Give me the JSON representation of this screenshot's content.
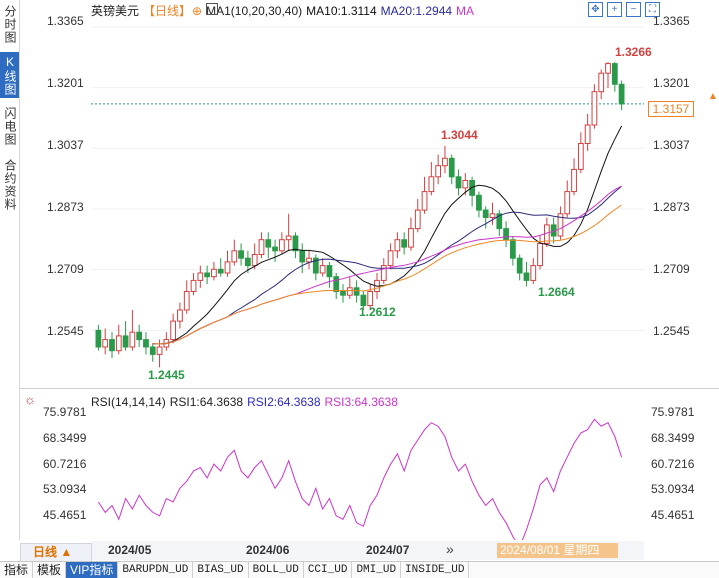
{
  "sidebar": {
    "tabs": [
      {
        "label": "分时图"
      },
      {
        "label": "K线图"
      },
      {
        "label": "闪电图"
      },
      {
        "label": "合约资料"
      }
    ]
  },
  "header": {
    "symbol": "英镑美元",
    "period": "【日线】",
    "gear": "⊕",
    "ma_params": "MA1(10,20,30,40)",
    "ma10": "MA10:1.3114",
    "ma20": "MA20:1.2944",
    "ma_last": "MA"
  },
  "toolbar": {
    "icons": [
      "move-icon",
      "zoom-in-icon",
      "zoom-out-icon",
      "fullscreen-icon"
    ]
  },
  "price_axis": {
    "labels": [
      "1.3365",
      "1.3201",
      "1.3037",
      "1.2873",
      "1.2709",
      "1.2545"
    ]
  },
  "left_axis": {
    "labels": [
      "1.3365",
      "1.3201",
      "1.3037",
      "1.2873",
      "1.2709",
      "1.2545"
    ]
  },
  "current_price": "1.3157",
  "annotations": {
    "high1": "1.3266",
    "high2": "1.3044",
    "low1": "1.2445",
    "low2": "1.2612",
    "low3": "1.2664"
  },
  "rsi": {
    "gear": "☼",
    "label": "RSI(14,14,14)",
    "rsi1": "RSI1:64.3638",
    "rsi2": "RSI2:64.3638",
    "rsi3": "RSI3:64.3638",
    "axis": [
      "75.9781",
      "68.3499",
      "60.7216",
      "53.0934",
      "45.4651"
    ],
    "left_axis": [
      "75.9781",
      "68.3499",
      "60.7216",
      "53.0934",
      "45.4651"
    ]
  },
  "period_button": "日线 ▲",
  "dates": [
    "2024/05",
    "2024/06",
    "2024/07"
  ],
  "cursor_date": "2024/08/01 星期四",
  "scroll_glyph": "»",
  "bottom_tabs": [
    "指标",
    "模板",
    "VIP指标",
    "BARUPDN_UD",
    "BIAS_UD",
    "BOLL_UD",
    "CCI_UD",
    "DMI_UD",
    "INSIDE_UD"
  ],
  "colors": {
    "up": "#d24040",
    "down": "#2a9a4a",
    "ma10": "#111111",
    "ma20": "#2a2a7a",
    "ma30": "#cc33cc",
    "ma40": "#ee8822",
    "rsi": "#cc33cc",
    "accent": "#2d6cc0",
    "current": "#f08020"
  },
  "chart_data": {
    "type": "candlestick",
    "ylim": [
      1.24,
      1.34
    ],
    "y_ticks": [
      1.3365,
      1.3201,
      1.3037,
      1.2873,
      1.2709,
      1.2545
    ],
    "candles": [
      [
        1.2545,
        1.25,
        1.256,
        1.249
      ],
      [
        1.25,
        1.252,
        1.255,
        1.248
      ],
      [
        1.252,
        1.249,
        1.254,
        1.247
      ],
      [
        1.249,
        1.253,
        1.256,
        1.248
      ],
      [
        1.253,
        1.25,
        1.257,
        1.249
      ],
      [
        1.25,
        1.254,
        1.26,
        1.249
      ],
      [
        1.254,
        1.252,
        1.256,
        1.25
      ],
      [
        1.252,
        1.25,
        1.254,
        1.248
      ],
      [
        1.25,
        1.248,
        1.251,
        1.246
      ],
      [
        1.248,
        1.25,
        1.252,
        1.2445
      ],
      [
        1.25,
        1.252,
        1.254,
        1.249
      ],
      [
        1.252,
        1.257,
        1.259,
        1.251
      ],
      [
        1.257,
        1.26,
        1.262,
        1.255
      ],
      [
        1.26,
        1.265,
        1.268,
        1.259
      ],
      [
        1.265,
        1.268,
        1.27,
        1.264
      ],
      [
        1.268,
        1.27,
        1.272,
        1.266
      ],
      [
        1.27,
        1.269,
        1.272,
        1.267
      ],
      [
        1.269,
        1.271,
        1.273,
        1.268
      ],
      [
        1.271,
        1.27,
        1.274,
        1.269
      ],
      [
        1.27,
        1.273,
        1.276,
        1.269
      ],
      [
        1.273,
        1.276,
        1.279,
        1.272
      ],
      [
        1.276,
        1.274,
        1.278,
        1.272
      ],
      [
        1.274,
        1.272,
        1.276,
        1.27
      ],
      [
        1.272,
        1.275,
        1.278,
        1.271
      ],
      [
        1.275,
        1.279,
        1.281,
        1.274
      ],
      [
        1.279,
        1.277,
        1.281,
        1.274
      ],
      [
        1.277,
        1.276,
        1.279,
        1.273
      ],
      [
        1.276,
        1.279,
        1.281,
        1.275
      ],
      [
        1.279,
        1.28,
        1.286,
        1.276
      ],
      [
        1.28,
        1.276,
        1.281,
        1.274
      ],
      [
        1.276,
        1.273,
        1.278,
        1.27
      ],
      [
        1.273,
        1.274,
        1.276,
        1.271
      ],
      [
        1.274,
        1.27,
        1.275,
        1.268
      ],
      [
        1.27,
        1.272,
        1.274,
        1.269
      ],
      [
        1.272,
        1.269,
        1.273,
        1.266
      ],
      [
        1.269,
        1.265,
        1.27,
        1.263
      ],
      [
        1.265,
        1.264,
        1.267,
        1.262
      ],
      [
        1.264,
        1.266,
        1.269,
        1.263
      ],
      [
        1.266,
        1.264,
        1.268,
        1.262
      ],
      [
        1.264,
        1.2612,
        1.265,
        1.26
      ],
      [
        1.2612,
        1.265,
        1.267,
        1.26
      ],
      [
        1.265,
        1.268,
        1.27,
        1.263
      ],
      [
        1.268,
        1.272,
        1.274,
        1.267
      ],
      [
        1.272,
        1.276,
        1.278,
        1.271
      ],
      [
        1.276,
        1.279,
        1.281,
        1.274
      ],
      [
        1.279,
        1.277,
        1.281,
        1.275
      ],
      [
        1.277,
        1.282,
        1.285,
        1.276
      ],
      [
        1.282,
        1.287,
        1.29,
        1.281
      ],
      [
        1.287,
        1.292,
        1.296,
        1.286
      ],
      [
        1.292,
        1.296,
        1.3,
        1.291
      ],
      [
        1.296,
        1.299,
        1.302,
        1.294
      ],
      [
        1.299,
        1.301,
        1.3044,
        1.297
      ],
      [
        1.301,
        1.296,
        1.302,
        1.294
      ],
      [
        1.296,
        1.293,
        1.298,
        1.291
      ],
      [
        1.293,
        1.295,
        1.297,
        1.291
      ],
      [
        1.295,
        1.291,
        1.296,
        1.288
      ],
      [
        1.291,
        1.287,
        1.292,
        1.285
      ],
      [
        1.287,
        1.285,
        1.288,
        1.282
      ],
      [
        1.285,
        1.286,
        1.289,
        1.283
      ],
      [
        1.286,
        1.282,
        1.287,
        1.28
      ],
      [
        1.282,
        1.279,
        1.284,
        1.277
      ],
      [
        1.279,
        1.274,
        1.28,
        1.272
      ],
      [
        1.274,
        1.27,
        1.275,
        1.268
      ],
      [
        1.27,
        1.268,
        1.273,
        1.2664
      ],
      [
        1.268,
        1.272,
        1.274,
        1.267
      ],
      [
        1.272,
        1.278,
        1.28,
        1.271
      ],
      [
        1.278,
        1.283,
        1.285,
        1.277
      ],
      [
        1.283,
        1.28,
        1.285,
        1.278
      ],
      [
        1.28,
        1.286,
        1.288,
        1.279
      ],
      [
        1.286,
        1.292,
        1.295,
        1.285
      ],
      [
        1.292,
        1.298,
        1.301,
        1.291
      ],
      [
        1.298,
        1.305,
        1.308,
        1.297
      ],
      [
        1.305,
        1.31,
        1.313,
        1.303
      ],
      [
        1.31,
        1.319,
        1.321,
        1.309
      ],
      [
        1.319,
        1.324,
        1.325,
        1.317
      ],
      [
        1.324,
        1.3266,
        1.327,
        1.32
      ],
      [
        1.3266,
        1.321,
        1.327,
        1.319
      ],
      [
        1.321,
        1.3157,
        1.322,
        1.314
      ]
    ],
    "rsi_ylim": [
      40,
      80
    ],
    "rsi_values": [
      51,
      48,
      50,
      46,
      52,
      49,
      53,
      50,
      48,
      47,
      52,
      51,
      55,
      57,
      60,
      61,
      58,
      62,
      60,
      64,
      66,
      60,
      58,
      61,
      63,
      59,
      55,
      58,
      63,
      57,
      52,
      50,
      55,
      49,
      52,
      47,
      46,
      50,
      45,
      44,
      50,
      53,
      58,
      62,
      65,
      60,
      66,
      69,
      72,
      74,
      73,
      70,
      64,
      60,
      62,
      57,
      53,
      50,
      52,
      48,
      45,
      41,
      38,
      43,
      49,
      56,
      58,
      54,
      60,
      64,
      68,
      71,
      72,
      75,
      73,
      74,
      70,
      64
    ]
  }
}
